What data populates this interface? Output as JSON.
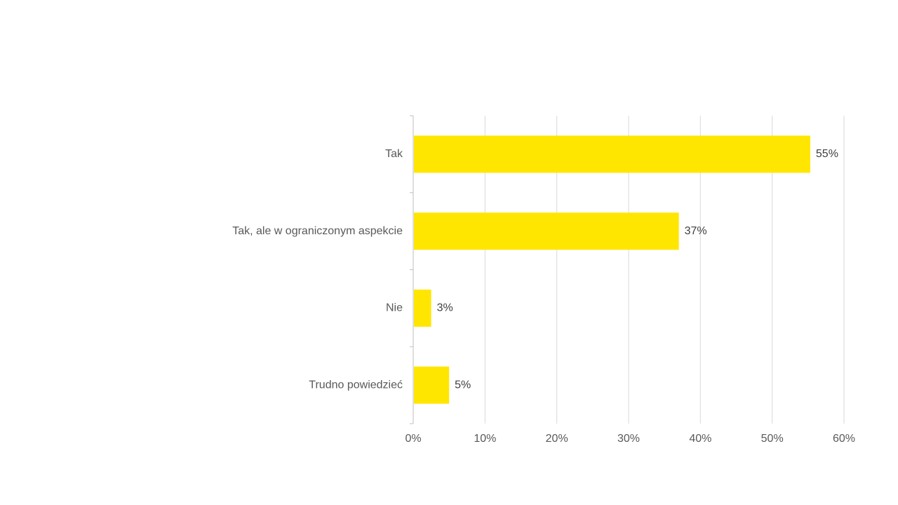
{
  "chart_data": {
    "type": "bar",
    "orientation": "horizontal",
    "categories": [
      "Tak",
      "Tak, ale w ograniczonym aspekcie",
      "Nie",
      "Trudno powiedzieć"
    ],
    "values": [
      55.3,
      37,
      2.5,
      5
    ],
    "data_labels": [
      "55%",
      "37%",
      "3%",
      "5%"
    ],
    "xlim": [
      0,
      60
    ],
    "x_ticks": [
      0,
      10,
      20,
      30,
      40,
      50,
      60
    ],
    "x_tick_labels": [
      "0%",
      "10%",
      "20%",
      "30%",
      "40%",
      "50%",
      "60%"
    ],
    "grid": "vertical",
    "legend": "none",
    "title": "",
    "xlabel": "",
    "ylabel": "",
    "colors": {
      "bar": "#FFE600",
      "grid": "#D9D9D9",
      "axis": "#BFBFBF",
      "text": "#595959"
    }
  }
}
